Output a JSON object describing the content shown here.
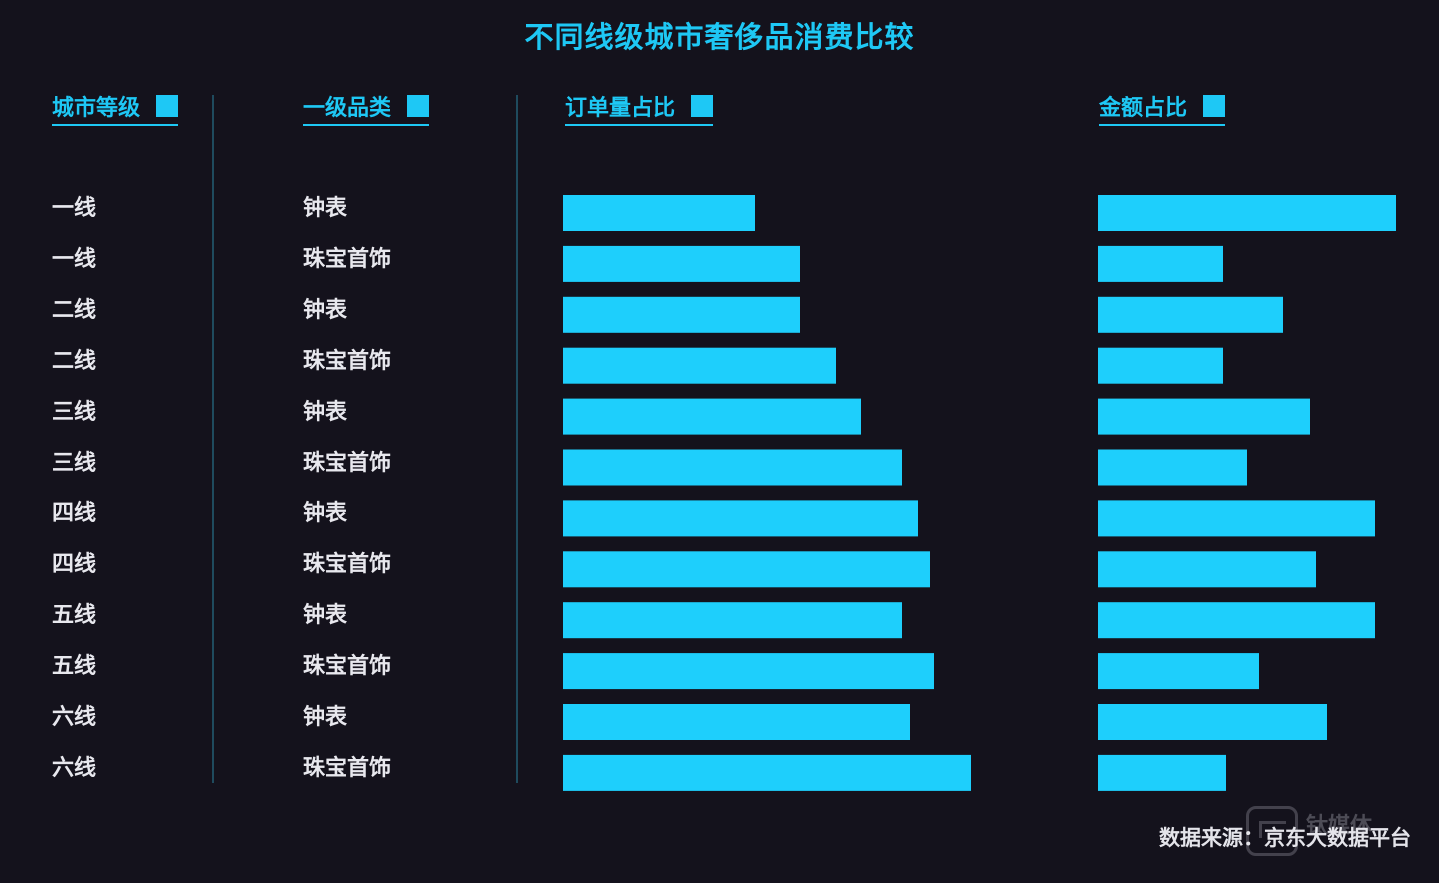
{
  "title": "不同线级城市奢侈品消费比较",
  "headers": {
    "city": "城市等级",
    "category": "一级品类",
    "orders": "订单量占比",
    "amount": "金额占比"
  },
  "source": "数据来源：京东大数据平台",
  "watermark_text": "钛媒体",
  "colors": {
    "bar": "#1ecffc",
    "accent": "#1ec8f5",
    "background": "#14121c"
  },
  "chart_data": {
    "type": "bar",
    "orientation": "horizontal",
    "categories": [
      "一线 钟表",
      "一线 珠宝首饰",
      "二线 钟表",
      "二线 珠宝首饰",
      "三线 钟表",
      "三线 珠宝首饰",
      "四线 钟表",
      "四线 珠宝首饰",
      "五线 钟表",
      "五线 珠宝首饰",
      "六线 钟表",
      "六线 珠宝首饰"
    ],
    "rows": [
      {
        "city": "一线",
        "category": "钟表"
      },
      {
        "city": "一线",
        "category": "珠宝首饰"
      },
      {
        "city": "二线",
        "category": "钟表"
      },
      {
        "city": "二线",
        "category": "珠宝首饰"
      },
      {
        "city": "三线",
        "category": "钟表"
      },
      {
        "city": "三线",
        "category": "珠宝首饰"
      },
      {
        "city": "四线",
        "category": "钟表"
      },
      {
        "city": "四线",
        "category": "珠宝首饰"
      },
      {
        "city": "五线",
        "category": "钟表"
      },
      {
        "city": "五线",
        "category": "珠宝首饰"
      },
      {
        "city": "六线",
        "category": "钟表"
      },
      {
        "city": "六线",
        "category": "珠宝首饰"
      }
    ],
    "series": [
      {
        "name": "订单量占比",
        "values": [
          0.47,
          0.58,
          0.58,
          0.67,
          0.73,
          0.83,
          0.87,
          0.9,
          0.83,
          0.91,
          0.85,
          1.0
        ]
      },
      {
        "name": "金额占比",
        "values": [
          1.0,
          0.42,
          0.62,
          0.42,
          0.71,
          0.5,
          0.93,
          0.73,
          0.93,
          0.54,
          0.77,
          0.43
        ]
      }
    ],
    "value_scale": "relative (no axis printed)"
  }
}
